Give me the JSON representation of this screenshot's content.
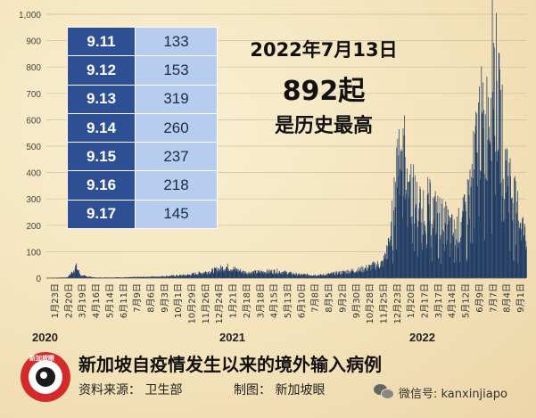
{
  "chart_data": {
    "type": "bar",
    "title": "新加坡自疫情发生以来的境外输入病例",
    "ylim": [
      0,
      1000
    ],
    "yticks": [
      0,
      100,
      200,
      300,
      400,
      500,
      600,
      700,
      800,
      900,
      1000
    ],
    "ytick_labels": [
      "0",
      "100",
      "200",
      "300",
      "400",
      "500",
      "600",
      "700",
      "800",
      "900",
      "1,000"
    ],
    "xtick_labels": [
      "1月23日",
      "2月20日",
      "3月19日",
      "4月16日",
      "5月14日",
      "6月11日",
      "7月9日",
      "8月6日",
      "9月3日",
      "10月1日",
      "10月29日",
      "11月26日",
      "12月24日",
      "1月21日",
      "2月18日",
      "3月18日",
      "4月15日",
      "5月13日",
      "6月10日",
      "7月8日",
      "8月5日",
      "9月2日",
      "9月30日",
      "10月28日",
      "11月25日",
      "12月23日",
      "1月20日",
      "2月17日",
      "3月17日",
      "4月14日",
      "5月12日",
      "6月9日",
      "7月7日",
      "8月4日",
      "9月1日"
    ],
    "year_labels": [
      "2020",
      "2021",
      "2022"
    ],
    "series_envelope": [
      {
        "date": "2020-01-23",
        "value": 0
      },
      {
        "date": "2020-03-05",
        "value": 3
      },
      {
        "date": "2020-03-15",
        "value": 25
      },
      {
        "date": "2020-03-22",
        "value": 48
      },
      {
        "date": "2020-04-01",
        "value": 10
      },
      {
        "date": "2020-05-01",
        "value": 2
      },
      {
        "date": "2020-07-01",
        "value": 3
      },
      {
        "date": "2020-09-01",
        "value": 6
      },
      {
        "date": "2020-11-01",
        "value": 12
      },
      {
        "date": "2020-12-20",
        "value": 28
      },
      {
        "date": "2021-01-20",
        "value": 45
      },
      {
        "date": "2021-03-01",
        "value": 22
      },
      {
        "date": "2021-05-01",
        "value": 28
      },
      {
        "date": "2021-06-15",
        "value": 14
      },
      {
        "date": "2021-08-01",
        "value": 12
      },
      {
        "date": "2021-09-15",
        "value": 25
      },
      {
        "date": "2021-10-20",
        "value": 35
      },
      {
        "date": "2021-12-01",
        "value": 60
      },
      {
        "date": "2021-12-15",
        "value": 140
      },
      {
        "date": "2021-12-25",
        "value": 320
      },
      {
        "date": "2022-01-02",
        "value": 560
      },
      {
        "date": "2022-01-12",
        "value": 520
      },
      {
        "date": "2022-01-25",
        "value": 380
      },
      {
        "date": "2022-02-10",
        "value": 290
      },
      {
        "date": "2022-03-01",
        "value": 300
      },
      {
        "date": "2022-03-20",
        "value": 260
      },
      {
        "date": "2022-04-10",
        "value": 220
      },
      {
        "date": "2022-04-25",
        "value": 180
      },
      {
        "date": "2022-05-15",
        "value": 250
      },
      {
        "date": "2022-06-01",
        "value": 420
      },
      {
        "date": "2022-06-15",
        "value": 650
      },
      {
        "date": "2022-06-25",
        "value": 560
      },
      {
        "date": "2022-07-13",
        "value": 892
      },
      {
        "date": "2022-07-25",
        "value": 640
      },
      {
        "date": "2022-08-10",
        "value": 430
      },
      {
        "date": "2022-08-25",
        "value": 300
      },
      {
        "date": "2022-09-05",
        "value": 240
      },
      {
        "date": "2022-09-17",
        "value": 145
      }
    ],
    "table": [
      {
        "date": "9.11",
        "value": "133"
      },
      {
        "date": "9.12",
        "value": "153"
      },
      {
        "date": "9.13",
        "value": "319"
      },
      {
        "date": "9.14",
        "value": "260"
      },
      {
        "date": "9.15",
        "value": "237"
      },
      {
        "date": "9.16",
        "value": "218"
      },
      {
        "date": "9.17",
        "value": "145"
      }
    ],
    "annotation": {
      "line1": "2022年7月13日",
      "line2": "892起",
      "line3": "是历史最高"
    },
    "colors": {
      "bar": "#243f66",
      "table_date_bg": "#2f4f94",
      "table_value_bg": "#b7cdee"
    }
  },
  "footer": {
    "title": "新加坡自疫情发生以来的境外输入病例",
    "source": "资料来源：  卫生部",
    "made_by": "制图：  新加坡眼",
    "logo_text": "新加坡眼",
    "wechat": "微信号: kanxinjiapo"
  }
}
